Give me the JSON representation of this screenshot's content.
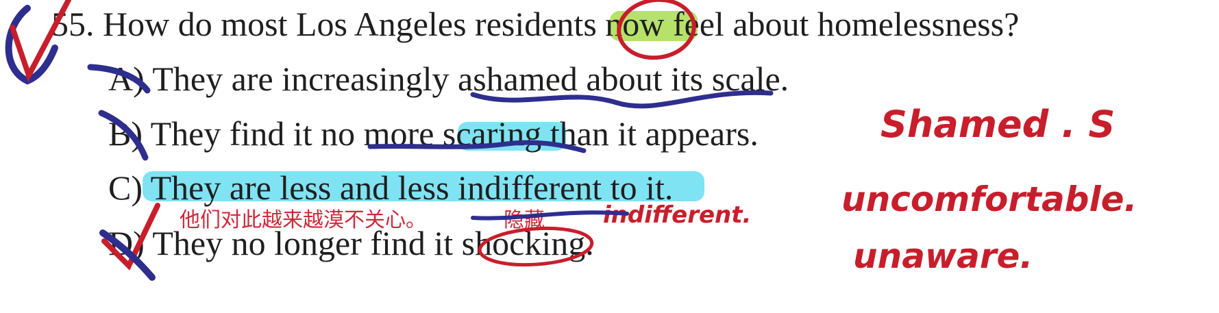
{
  "question": {
    "number": "55.",
    "prefix": "How do most Los Angeles residents ",
    "highlighted_word": "now",
    "suffix": " feel about homelessness?"
  },
  "options": [
    {
      "letter": "A)",
      "text": "They are increasingly ashamed about its scale."
    },
    {
      "letter": "B)",
      "text": "They find it no more scaring than it appears."
    },
    {
      "letter": "C)",
      "text": "They are less and less indifferent to it."
    },
    {
      "letter": "D)",
      "text": "They no longer find it shocking."
    }
  ],
  "annotations": {
    "chinese_translation": "他们对此越来越漠不关心。",
    "chinese_note": "隐藏",
    "english_note": "indifferent.",
    "margin_words": [
      "Shamed . S",
      "uncomfortable.",
      "unaware."
    ]
  },
  "colors": {
    "green_highlight": "#b6e26a",
    "cyan_highlight": "#7fe3f3",
    "red_ink": "#c81e2b",
    "blue_ink": "#2e2e8f"
  }
}
